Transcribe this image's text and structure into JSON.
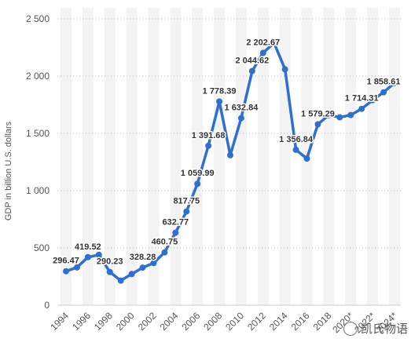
{
  "chart_data": {
    "type": "line",
    "title": "",
    "xlabel": "",
    "ylabel": "GDP in billion U.S. dollars",
    "ylim": [
      0,
      2500
    ],
    "y_ticks": [
      0,
      500,
      1000,
      1500,
      2000,
      2500
    ],
    "y_tick_labels": [
      "0",
      "500",
      "1 000",
      "1 500",
      "2 000",
      "2 500"
    ],
    "x_tick_labels": [
      "1994",
      "1996",
      "1998",
      "2000",
      "2002",
      "2004",
      "2006",
      "2008",
      "2010",
      "2012",
      "2014",
      "2016",
      "2018",
      "2020*",
      "2022*",
      "2024*"
    ],
    "grid": "horizontal dotted",
    "color": "#2f6fd1",
    "x": [
      1994,
      1995,
      1996,
      1997,
      1998,
      1999,
      2000,
      2001,
      2002,
      2003,
      2004,
      2005,
      2006,
      2007,
      2008,
      2009,
      2010,
      2011,
      2012,
      2013,
      2014,
      2015,
      2016,
      2017,
      2018,
      2019,
      2020,
      2021,
      2022,
      2023,
      2024
    ],
    "values": [
      296.47,
      330,
      419.52,
      440,
      290.23,
      215,
      272,
      328.28,
      368,
      460.75,
      632.77,
      817.75,
      1059.99,
      1391.68,
      1778.39,
      1310,
      1632.84,
      2044.62,
      2202.67,
      2290,
      2060,
      1356.84,
      1280,
      1579.29,
      1660,
      1640,
      1660,
      1714.31,
      1790,
      1858.61,
      1940
    ],
    "data_labels": [
      {
        "x": 1994,
        "text": "296.47"
      },
      {
        "x": 1996,
        "text": "419.52"
      },
      {
        "x": 1998,
        "text": "290.23"
      },
      {
        "x": 2001,
        "text": "328.28"
      },
      {
        "x": 2003,
        "text": "460.75"
      },
      {
        "x": 2004,
        "text": "632.77"
      },
      {
        "x": 2005,
        "text": "817.75"
      },
      {
        "x": 2006,
        "text": "1 059.99"
      },
      {
        "x": 2007,
        "text": "1 391.68"
      },
      {
        "x": 2008,
        "text": "1 778.39"
      },
      {
        "x": 2010,
        "text": "1 632.84"
      },
      {
        "x": 2011,
        "text": "2 044.62"
      },
      {
        "x": 2012,
        "text": "2 202.67"
      },
      {
        "x": 2015,
        "text": "1 356.84"
      },
      {
        "x": 2017,
        "text": "1 579.29"
      },
      {
        "x": 2021,
        "text": "1 714.31"
      },
      {
        "x": 2023,
        "text": "1 858.61"
      }
    ]
  },
  "watermark": {
    "text": "凯氏物语"
  }
}
